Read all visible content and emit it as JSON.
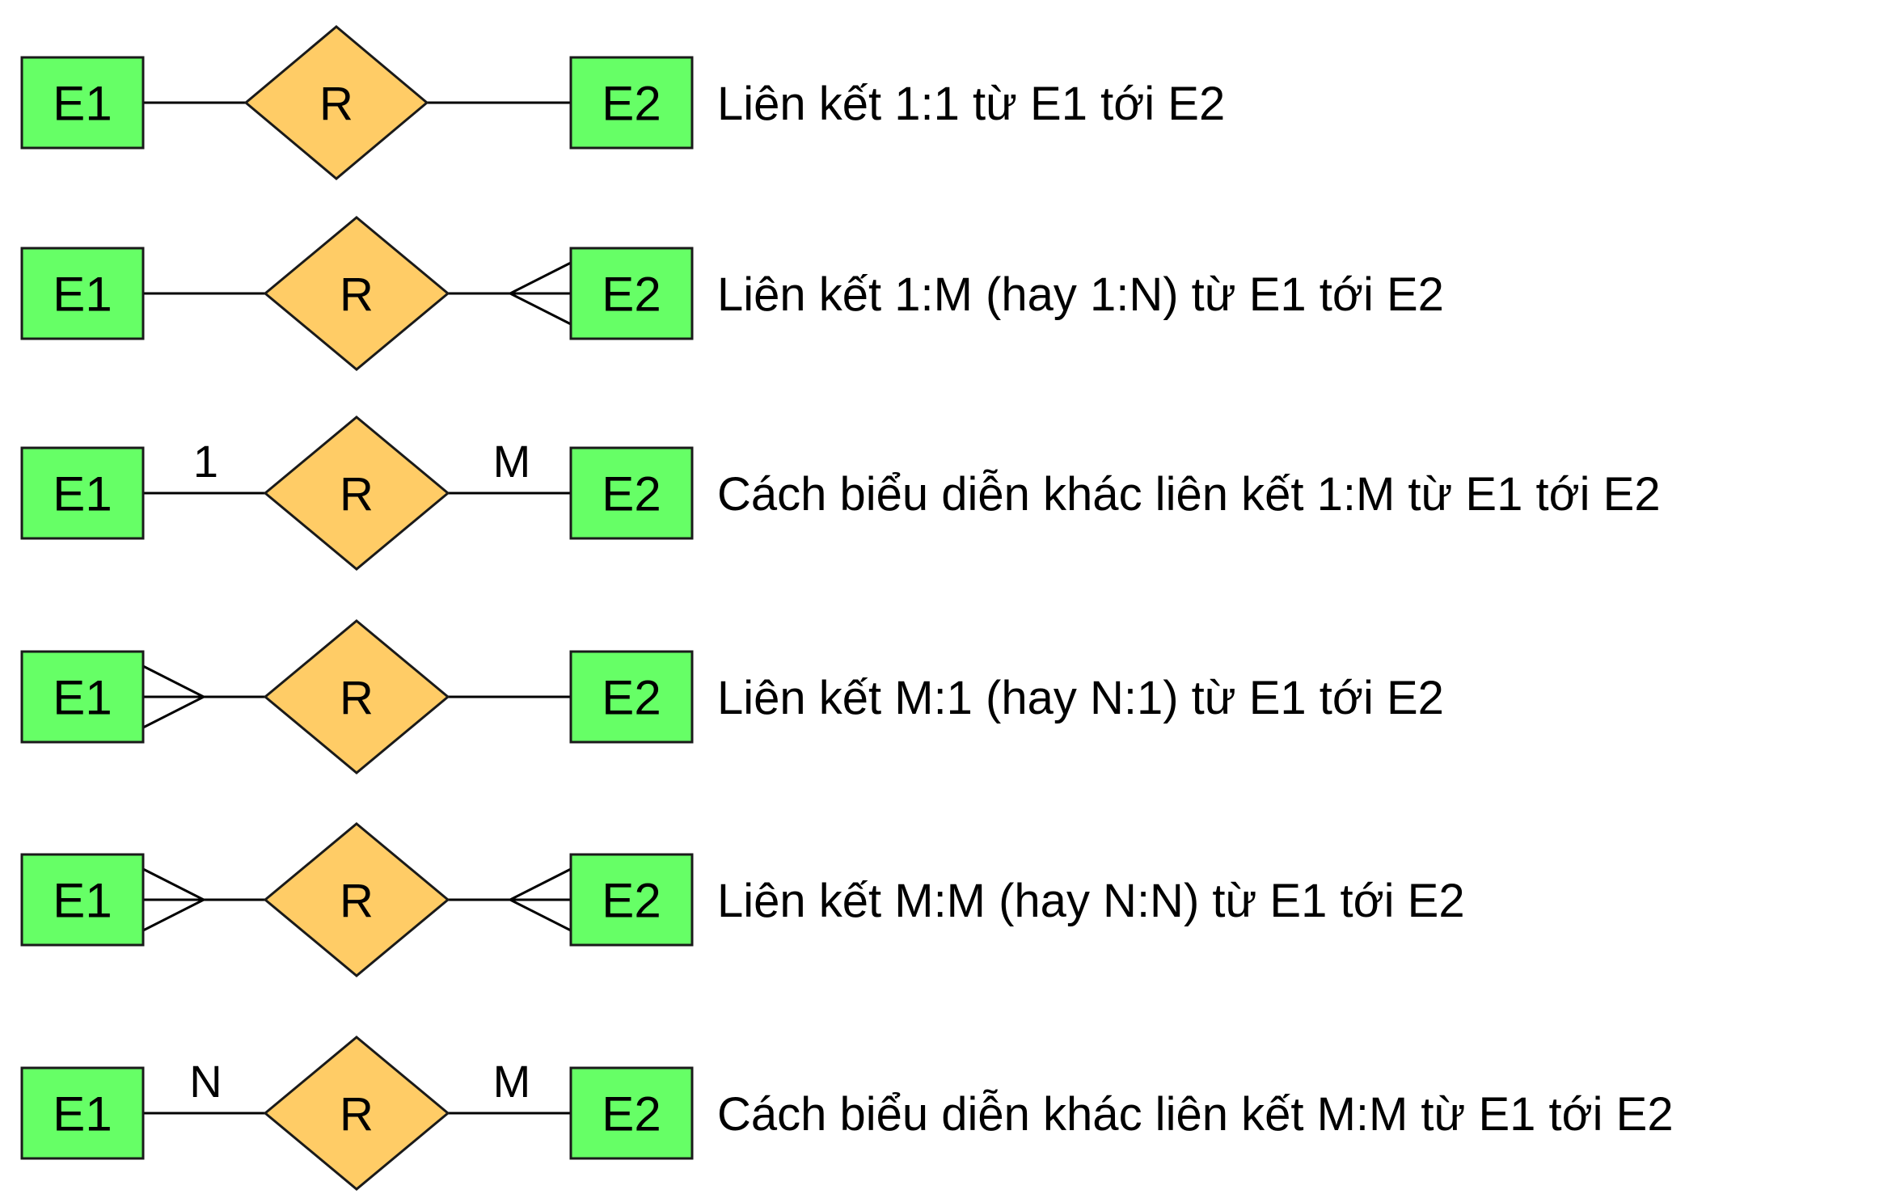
{
  "colors": {
    "entity_fill": "#66ff66",
    "relationship_fill": "#ffcc66",
    "stroke": "#1a1a1a",
    "background": "#ffffff"
  },
  "rows": [
    {
      "left_entity": "E1",
      "relationship": "R",
      "right_entity": "E2",
      "left_end": "one",
      "right_end": "one",
      "left_label": "",
      "right_label": "",
      "caption": "Liên kết 1:1 từ E1 tới E2"
    },
    {
      "left_entity": "E1",
      "relationship": "R",
      "right_entity": "E2",
      "left_end": "one",
      "right_end": "many",
      "left_label": "",
      "right_label": "",
      "caption": "Liên kết 1:M (hay 1:N) từ E1 tới E2"
    },
    {
      "left_entity": "E1",
      "relationship": "R",
      "right_entity": "E2",
      "left_end": "one",
      "right_end": "one",
      "left_label": "1",
      "right_label": "M",
      "caption": "Cách biểu diễn khác liên kết 1:M từ E1 tới E2"
    },
    {
      "left_entity": "E1",
      "relationship": "R",
      "right_entity": "E2",
      "left_end": "many",
      "right_end": "one",
      "left_label": "",
      "right_label": "",
      "caption": "Liên kết M:1 (hay N:1) từ E1 tới E2"
    },
    {
      "left_entity": "E1",
      "relationship": "R",
      "right_entity": "E2",
      "left_end": "many",
      "right_end": "many",
      "left_label": "",
      "right_label": "",
      "caption": "Liên kết M:M (hay N:N) từ E1 tới E2"
    },
    {
      "left_entity": "E1",
      "relationship": "R",
      "right_entity": "E2",
      "left_end": "one",
      "right_end": "one",
      "left_label": "N",
      "right_label": "M",
      "caption": "Cách biểu diễn khác liên kết M:M từ E1 tới E2"
    }
  ]
}
